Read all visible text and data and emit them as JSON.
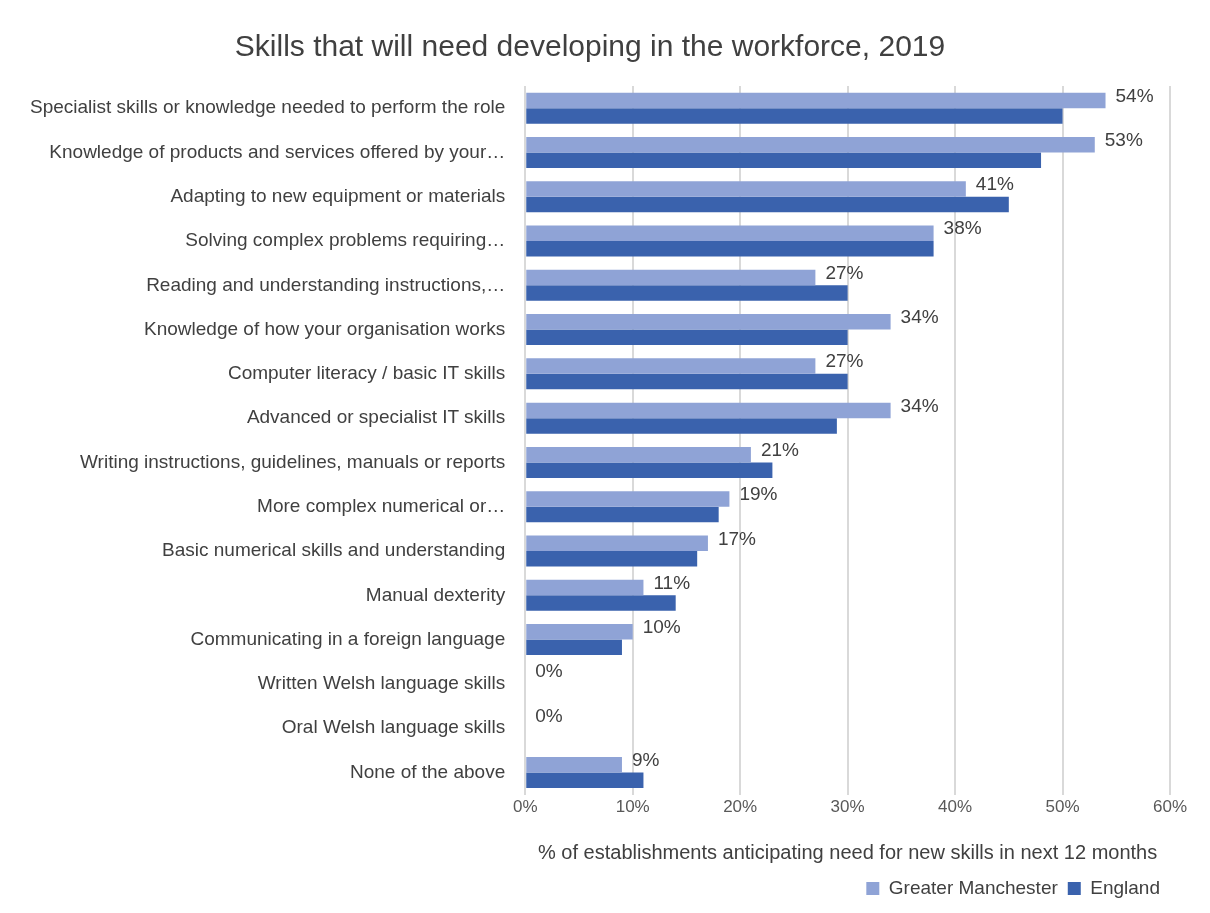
{
  "chart_data": {
    "type": "bar",
    "orientation": "horizontal",
    "title": "Skills that will need developing in the workforce, 2019",
    "xlabel": "% of establishments anticipating need for new skills in next 12 months",
    "categories": [
      "Specialist skills or knowledge needed to perform the role",
      "Knowledge of products and services offered by your…",
      "Adapting to new equipment or materials",
      "Solving complex problems requiring…",
      "Reading and understanding instructions,…",
      "Knowledge of how your organisation works",
      "Computer literacy / basic IT skills",
      "Advanced or specialist IT skills",
      "Writing instructions, guidelines, manuals or reports",
      "More complex numerical or…",
      "Basic numerical skills and understanding",
      "Manual dexterity",
      "Communicating in a foreign language",
      "Written Welsh language skills",
      "Oral Welsh language skills",
      "None of the above"
    ],
    "series": [
      {
        "name": "Greater Manchester",
        "color": "#8fa3d6",
        "values": [
          54,
          53,
          41,
          38,
          27,
          34,
          27,
          34,
          21,
          19,
          17,
          11,
          10,
          0,
          0,
          9
        ],
        "value_labels": [
          "54%",
          "53%",
          "41%",
          "38%",
          "27%",
          "34%",
          "27%",
          "34%",
          "21%",
          "19%",
          "17%",
          "11%",
          "10%",
          "0%",
          "0%",
          "9%"
        ]
      },
      {
        "name": "England",
        "color": "#3a62ad",
        "values": [
          50,
          48,
          45,
          38,
          30,
          30,
          30,
          29,
          23,
          18,
          16,
          14,
          9,
          0,
          0,
          11
        ]
      }
    ],
    "xlim": [
      0,
      60
    ],
    "xticks": [
      {
        "value": 0,
        "label": "0%"
      },
      {
        "value": 10,
        "label": "10%"
      },
      {
        "value": 20,
        "label": "20%"
      },
      {
        "value": 30,
        "label": "30%"
      },
      {
        "value": 40,
        "label": "40%"
      },
      {
        "value": 50,
        "label": "50%"
      },
      {
        "value": 60,
        "label": "60%"
      }
    ],
    "grid": "x",
    "legend": "bottom right"
  }
}
